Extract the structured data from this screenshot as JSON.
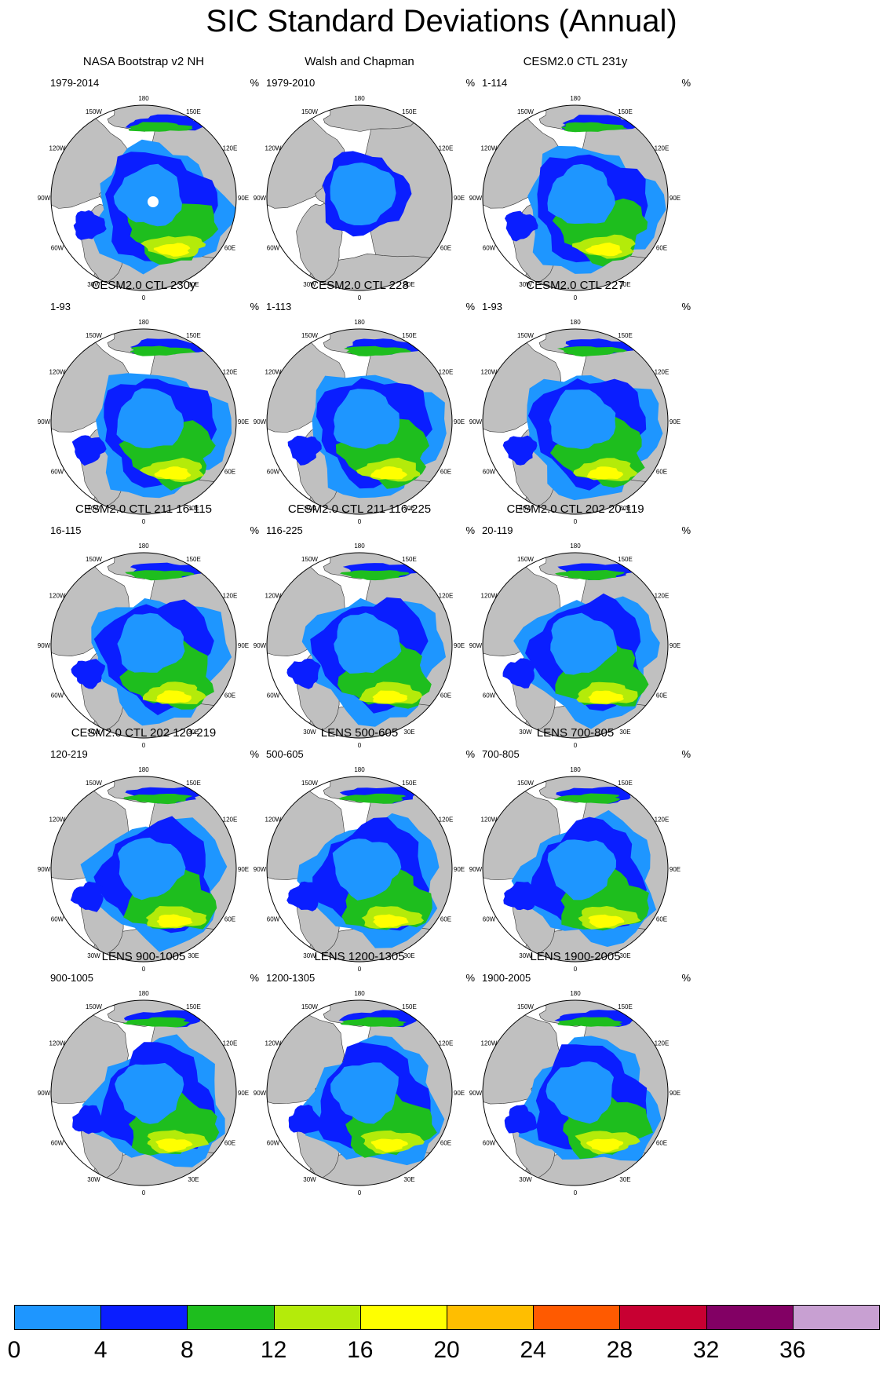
{
  "title": "SIC Standard Deviations (Annual)",
  "unit": "%",
  "lon_labels": {
    "180": "180",
    "150E": "150E",
    "120E": "120E",
    "90E": "90E",
    "60E": "60E",
    "30E": "30E",
    "0": "0",
    "30W": "30W",
    "60W": "60W",
    "90W": "90W",
    "120W": "120W",
    "150W": "150W"
  },
  "panels": [
    {
      "title": "NASA Bootstrap v2 NH",
      "period": "1979-2014",
      "style": "obs"
    },
    {
      "title": "Walsh and Chapman",
      "period": "1979-2010",
      "style": "walsh"
    },
    {
      "title": "CESM2.0 CTL 231y",
      "period": "1-114",
      "style": "model"
    },
    {
      "title": "CESM2.0 CTL 230y",
      "period": "1-93",
      "style": "model"
    },
    {
      "title": "CESM2.0 CTL 228",
      "period": "1-113",
      "style": "model"
    },
    {
      "title": "CESM2.0 CTL 227",
      "period": "1-93",
      "style": "model"
    },
    {
      "title": "CESM2.0 CTL 211 16-115",
      "period": "16-115",
      "style": "model"
    },
    {
      "title": "CESM2.0 CTL 211 116-225",
      "period": "116-225",
      "style": "model"
    },
    {
      "title": "CESM2.0 CTL 202 20-119",
      "period": "20-119",
      "style": "model"
    },
    {
      "title": "CESM2.0 CTL 202 120-219",
      "period": "120-219",
      "style": "model"
    },
    {
      "title": "LENS 500-605",
      "period": "500-605",
      "style": "lens"
    },
    {
      "title": "LENS 700-805",
      "period": "700-805",
      "style": "lens"
    },
    {
      "title": "LENS 900-1005",
      "period": "900-1005",
      "style": "lens"
    },
    {
      "title": "LENS 1200-1305",
      "period": "1200-1305",
      "style": "lens"
    },
    {
      "title": "LENS 1900-2005",
      "period": "1900-2005",
      "style": "lens"
    }
  ],
  "colorbar": {
    "colors": [
      "#1e96ff",
      "#0a1eff",
      "#1ebe1e",
      "#b4eb0a",
      "#ffff00",
      "#ffbe00",
      "#ff5a00",
      "#c80032",
      "#820064",
      "#c8a0d2"
    ],
    "labels": [
      "0",
      "4",
      "8",
      "12",
      "16",
      "20",
      "24",
      "28",
      "32",
      "36"
    ]
  },
  "map_colors": {
    "land": "#c0c0c0",
    "ocean": "#ffffff"
  }
}
